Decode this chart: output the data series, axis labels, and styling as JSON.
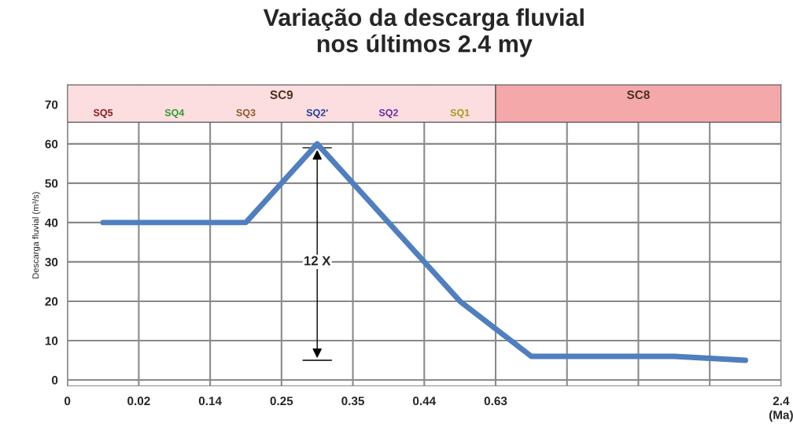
{
  "chart_data": {
    "type": "line",
    "title": "Variação da descarga fluvial\nnos últimos 2.4 my",
    "xlabel": "(Ma)",
    "ylabel": "Descarga fluvial (m³/s)",
    "categories": [
      "SQ5",
      "SQ4",
      "SQ3",
      "SQ2'",
      "SQ2",
      "SQ1",
      null,
      null,
      null,
      null
    ],
    "series": [
      {
        "color": "#4f7fbf",
        "values": [
          40,
          40,
          40,
          60,
          40,
          20,
          6,
          6,
          6,
          5
        ]
      }
    ],
    "ylim": [
      -1.5,
      75
    ],
    "yticks": [
      0,
      10,
      20,
      30,
      40,
      50,
      60,
      70
    ],
    "annotations": [
      "SC9",
      "SC8",
      "0",
      "0.02",
      "0.14",
      "0.25",
      "0.35",
      "0.44",
      "0.63",
      "2.4",
      {
        "text": "12 X",
        "x": "SQ2'",
        "y": 30
      }
    ],
    "grid": true,
    "marker": "none",
    "line_style": "solid"
  }
}
